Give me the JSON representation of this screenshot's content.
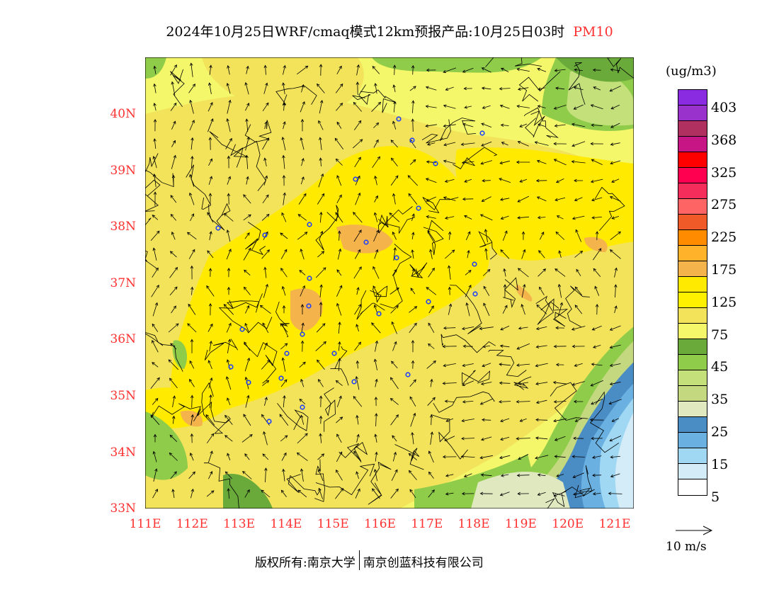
{
  "title": {
    "main": "2024年10月25日WRF/cmaq模式12km预报产品:10月25日03时",
    "variable": "PM10"
  },
  "lat_labels": [
    "40N",
    "39N",
    "38N",
    "37N",
    "36N",
    "35N",
    "34N",
    "33N"
  ],
  "lon_labels": [
    "111E",
    "112E",
    "113E",
    "114E",
    "115E",
    "116E",
    "117E",
    "118E",
    "119E",
    "120E",
    "121E"
  ],
  "legend": {
    "unit": "(ug/m3)",
    "colors": [
      "#8a2be2",
      "#9932cc",
      "#b03060",
      "#c71585",
      "#ff0000",
      "#ff0050",
      "#f52d5a",
      "#ff6464",
      "#f05a28",
      "#ff8c00",
      "#ffb22a",
      "#f5b44b",
      "#ffea00",
      "#fff000",
      "#f2e35a",
      "#f4f76a",
      "#6aaa3a",
      "#8fcc4a",
      "#c3e07a",
      "#c4d880",
      "#e0e8c0",
      "#4a8cc4",
      "#6ab0e0",
      "#a0d8f4",
      "#d4ecf8",
      "#ffffff"
    ],
    "labels": [
      "403",
      "368",
      "325",
      "275",
      "225",
      "175",
      "125",
      "75",
      "45",
      "35",
      "25",
      "15",
      "5"
    ]
  },
  "wind_reference": "10 m/s",
  "footer": {
    "left": "版权所有:南京大学",
    "right": "南京创蓝科技有限公司"
  }
}
